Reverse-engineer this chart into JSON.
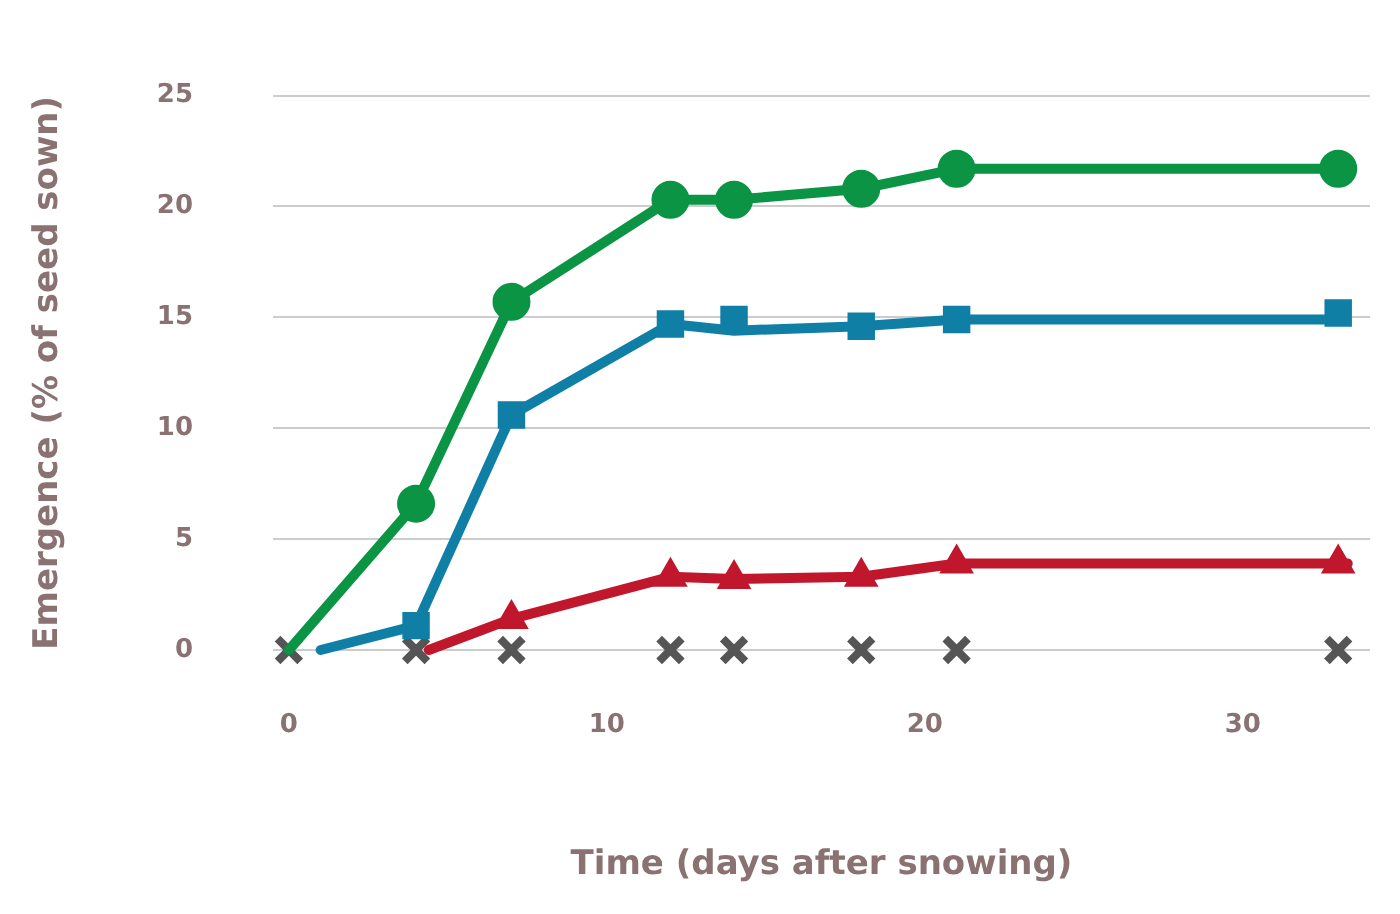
{
  "chart_data": {
    "type": "line",
    "xlabel": "Time (days after snowing)",
    "ylabel": "Emergence (% of seed sown)",
    "xlim": [
      -0.5,
      34
    ],
    "xticks": [
      0,
      10,
      20,
      30
    ],
    "ylim": [
      0,
      25
    ],
    "yticks": [
      0,
      5,
      10,
      15,
      20,
      25
    ],
    "grid": "y",
    "legend": false,
    "series": [
      {
        "type": "line",
        "marker": "none",
        "color": "#0a9444",
        "x": [
          0,
          4,
          7,
          12,
          14,
          18,
          21,
          33
        ],
        "values": [
          0,
          6.6,
          15.7,
          20.3,
          20.3,
          20.8,
          21.7,
          21.7
        ]
      },
      {
        "type": "line",
        "marker": "none",
        "color": "#0f7fa6",
        "x": [
          1,
          4,
          7,
          12,
          14,
          18,
          21,
          33
        ],
        "values": [
          0,
          1.1,
          10.6,
          14.7,
          14.4,
          14.6,
          14.9,
          14.9
        ]
      },
      {
        "type": "line",
        "marker": "none",
        "color": "#c0172d",
        "x": [
          4.4,
          7,
          12,
          14,
          18,
          21,
          33.3
        ],
        "values": [
          0,
          1.4,
          3.3,
          3.2,
          3.3,
          3.9,
          3.9
        ]
      },
      {
        "type": "scatter",
        "marker": "circle",
        "color": "#0a9444",
        "x": [
          4,
          7,
          12,
          14,
          18,
          21,
          33
        ],
        "values": [
          6.6,
          15.7,
          20.3,
          20.3,
          20.8,
          21.7,
          21.7
        ]
      },
      {
        "type": "scatter",
        "marker": "square",
        "color": "#0f7fa6",
        "x": [
          4,
          7,
          12,
          14,
          18,
          21,
          33
        ],
        "values": [
          1.1,
          10.6,
          14.7,
          14.9,
          14.6,
          14.9,
          15.2
        ]
      },
      {
        "type": "scatter",
        "marker": "triangle",
        "color": "#c0172d",
        "x": [
          7,
          12,
          14,
          18,
          21,
          33
        ],
        "values": [
          1.4,
          3.3,
          3.2,
          3.3,
          3.9,
          3.9
        ]
      },
      {
        "type": "scatter",
        "marker": "cross",
        "color": "#555555",
        "x": [
          0,
          4,
          7,
          12,
          14,
          18,
          21,
          33
        ],
        "values": [
          0,
          0,
          0,
          0,
          0,
          0,
          0,
          0
        ]
      }
    ]
  }
}
